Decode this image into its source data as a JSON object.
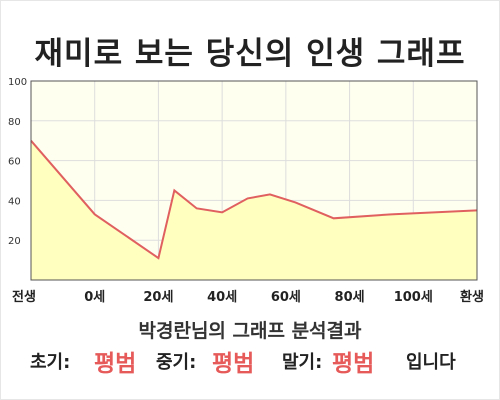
{
  "title": "재미로 보는 당신의 인생 그래프",
  "summary": "박경란님의 그래프 분석결과",
  "verdict": {
    "early_label": "초기:",
    "early_value": "평범",
    "mid_label": "중기:",
    "mid_value": "평범",
    "late_label": "말기:",
    "late_value": "평범",
    "ending": "입니다"
  },
  "colors": {
    "line": "#e06060",
    "fill": "#ffffc0",
    "plot_bg": "#fffff0",
    "grid": "#dddddd",
    "verdict_value": "#e65a5a"
  },
  "chart_data": {
    "type": "area",
    "title": "",
    "xlabel": "",
    "ylabel": "",
    "x_tick_labels": [
      "전생",
      "0세",
      "20세",
      "40세",
      "60세",
      "80세",
      "100세",
      "환생"
    ],
    "x": [
      "전생",
      "0세",
      "20세",
      "25세",
      "30세",
      "35세",
      "50세",
      "60세",
      "70세",
      "85세",
      "95세",
      "환생"
    ],
    "x_pos": [
      -20,
      0,
      20,
      25,
      30,
      35,
      50,
      60,
      70,
      85,
      95,
      120
    ],
    "x_tick_pos": [
      -20,
      0,
      20,
      40,
      60,
      80,
      100,
      120
    ],
    "xlim": [
      -20,
      120
    ],
    "values": [
      70,
      33,
      11,
      45,
      36,
      34,
      41,
      43,
      39,
      31,
      33,
      35
    ],
    "x_pos_full": [
      -20,
      0,
      20,
      25,
      32,
      40,
      48,
      55,
      63,
      75,
      93,
      120
    ],
    "ylim": [
      0,
      100
    ],
    "y_ticks": [
      20,
      40,
      60,
      80,
      100
    ],
    "grid": true,
    "legend": "none"
  }
}
